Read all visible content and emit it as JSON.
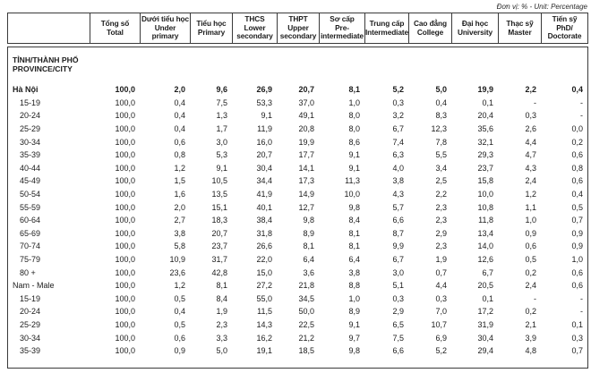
{
  "unit_note": "Đơn vị: % - Unit: Percentage",
  "table": {
    "columns": [
      {
        "vi": "Tổng số",
        "en": "Total"
      },
      {
        "vi": "Dưới tiểu học",
        "en": "Under primary"
      },
      {
        "vi": "Tiểu học",
        "en": "Primary"
      },
      {
        "vi": "THCS",
        "en": "Lower secondary"
      },
      {
        "vi": "THPT",
        "en": "Upper secondary"
      },
      {
        "vi": "Sơ cấp",
        "en": "Pre-intermediate"
      },
      {
        "vi": "Trung cấp",
        "en": "Intermediate"
      },
      {
        "vi": "Cao đẳng",
        "en": "College"
      },
      {
        "vi": "Đại học",
        "en": "University"
      },
      {
        "vi": "Thạc sỹ",
        "en": "Master"
      },
      {
        "vi": "Tiến sỹ",
        "en": "PhD/ Doctorate"
      }
    ],
    "section_header": {
      "vi": "TỈNH/THÀNH PHỐ",
      "en": "PROVINCE/CITY"
    },
    "rows": [
      {
        "label": "Hà Nội",
        "type": "province",
        "values": [
          "100,0",
          "2,0",
          "9,6",
          "26,9",
          "20,7",
          "8,1",
          "5,2",
          "5,0",
          "19,9",
          "2,2",
          "0,4"
        ]
      },
      {
        "label": "15-19",
        "type": "age",
        "values": [
          "100,0",
          "0,4",
          "7,5",
          "53,3",
          "37,0",
          "1,0",
          "0,3",
          "0,4",
          "0,1",
          "-",
          "-"
        ]
      },
      {
        "label": "20-24",
        "type": "age",
        "values": [
          "100,0",
          "0,4",
          "1,3",
          "9,1",
          "49,1",
          "8,0",
          "3,2",
          "8,3",
          "20,4",
          "0,3",
          "-"
        ]
      },
      {
        "label": "25-29",
        "type": "age",
        "values": [
          "100,0",
          "0,4",
          "1,7",
          "11,9",
          "20,8",
          "8,0",
          "6,7",
          "12,3",
          "35,6",
          "2,6",
          "0,0"
        ]
      },
      {
        "label": "30-34",
        "type": "age",
        "values": [
          "100,0",
          "0,6",
          "3,0",
          "16,0",
          "19,9",
          "8,6",
          "7,4",
          "7,8",
          "32,1",
          "4,4",
          "0,2"
        ]
      },
      {
        "label": "35-39",
        "type": "age",
        "values": [
          "100,0",
          "0,8",
          "5,3",
          "20,7",
          "17,7",
          "9,1",
          "6,3",
          "5,5",
          "29,3",
          "4,7",
          "0,6"
        ]
      },
      {
        "label": "40-44",
        "type": "age",
        "values": [
          "100,0",
          "1,2",
          "9,1",
          "30,4",
          "14,1",
          "9,1",
          "4,0",
          "3,4",
          "23,7",
          "4,3",
          "0,8"
        ]
      },
      {
        "label": "45-49",
        "type": "age",
        "values": [
          "100,0",
          "1,5",
          "10,5",
          "34,4",
          "17,3",
          "11,3",
          "3,8",
          "2,5",
          "15,8",
          "2,4",
          "0,6"
        ]
      },
      {
        "label": "50-54",
        "type": "age",
        "values": [
          "100,0",
          "1,6",
          "13,5",
          "41,9",
          "14,9",
          "10,0",
          "4,3",
          "2,2",
          "10,0",
          "1,2",
          "0,4"
        ]
      },
      {
        "label": "55-59",
        "type": "age",
        "values": [
          "100,0",
          "2,0",
          "15,1",
          "40,1",
          "12,7",
          "9,8",
          "5,7",
          "2,3",
          "10,8",
          "1,1",
          "0,5"
        ]
      },
      {
        "label": "60-64",
        "type": "age",
        "values": [
          "100,0",
          "2,7",
          "18,3",
          "38,4",
          "9,8",
          "8,4",
          "6,6",
          "2,3",
          "11,8",
          "1,0",
          "0,7"
        ]
      },
      {
        "label": "65-69",
        "type": "age",
        "values": [
          "100,0",
          "3,8",
          "20,7",
          "31,8",
          "8,9",
          "8,1",
          "8,7",
          "2,9",
          "13,4",
          "0,9",
          "0,9"
        ]
      },
      {
        "label": "70-74",
        "type": "age",
        "values": [
          "100,0",
          "5,8",
          "23,7",
          "26,6",
          "8,1",
          "8,1",
          "9,9",
          "2,3",
          "14,0",
          "0,6",
          "0,9"
        ]
      },
      {
        "label": "75-79",
        "type": "age",
        "values": [
          "100,0",
          "10,9",
          "31,7",
          "22,0",
          "6,4",
          "6,4",
          "6,7",
          "1,9",
          "12,6",
          "0,5",
          "1,0"
        ]
      },
      {
        "label": "80 +",
        "type": "age",
        "values": [
          "100,0",
          "23,6",
          "42,8",
          "15,0",
          "3,6",
          "3,8",
          "3,0",
          "0,7",
          "6,7",
          "0,2",
          "0,6"
        ]
      },
      {
        "label": "Nam - Male",
        "type": "sex-group",
        "values": [
          "100,0",
          "1,2",
          "8,1",
          "27,2",
          "21,8",
          "8,8",
          "5,1",
          "4,4",
          "20,5",
          "2,4",
          "0,6"
        ]
      },
      {
        "label": "15-19",
        "type": "age",
        "values": [
          "100,0",
          "0,5",
          "8,4",
          "55,0",
          "34,5",
          "1,0",
          "0,3",
          "0,3",
          "0,1",
          "-",
          "-"
        ]
      },
      {
        "label": "20-24",
        "type": "age",
        "values": [
          "100,0",
          "0,4",
          "1,9",
          "11,5",
          "50,0",
          "8,9",
          "2,9",
          "7,0",
          "17,2",
          "0,2",
          "-"
        ]
      },
      {
        "label": "25-29",
        "type": "age",
        "values": [
          "100,0",
          "0,5",
          "2,3",
          "14,3",
          "22,5",
          "9,1",
          "6,5",
          "10,7",
          "31,9",
          "2,1",
          "0,1"
        ]
      },
      {
        "label": "30-34",
        "type": "age",
        "values": [
          "100,0",
          "0,6",
          "3,3",
          "16,2",
          "21,2",
          "9,7",
          "7,5",
          "6,9",
          "30,4",
          "3,9",
          "0,3"
        ]
      },
      {
        "label": "35-39",
        "type": "age",
        "values": [
          "100,0",
          "0,9",
          "5,0",
          "19,1",
          "18,5",
          "9,8",
          "6,6",
          "5,2",
          "29,4",
          "4,8",
          "0,7"
        ]
      }
    ]
  }
}
